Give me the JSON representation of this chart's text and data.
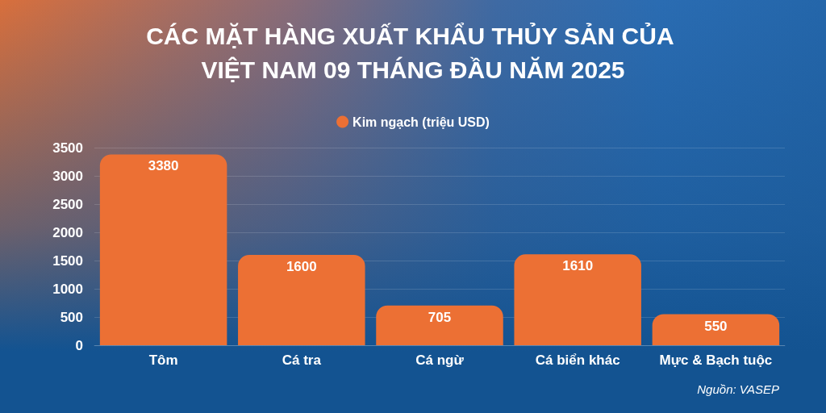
{
  "chart_data": {
    "type": "bar",
    "title": "CÁC MẶT HÀNG XUẤT KHẨU THỦY SẢN CỦA VIỆT NAM 09 THÁNG ĐẦU NĂM 2025",
    "categories": [
      "Tôm",
      "Cá tra",
      "Cá ngừ",
      "Cá biển khác",
      "Mực & Bạch tuộc"
    ],
    "series": [
      {
        "name": "Kim ngạch (triệu USD)",
        "color": "#ec7034",
        "values": [
          3380,
          1600,
          705,
          1610,
          550
        ]
      }
    ],
    "ylim": [
      0,
      3500
    ],
    "yticks": [
      0,
      500,
      1000,
      1500,
      2000,
      2500,
      3000,
      3500
    ],
    "grid": "y",
    "legend": "top",
    "data_labels": true,
    "annotations": [
      "Nguồn: VASEP"
    ]
  }
}
